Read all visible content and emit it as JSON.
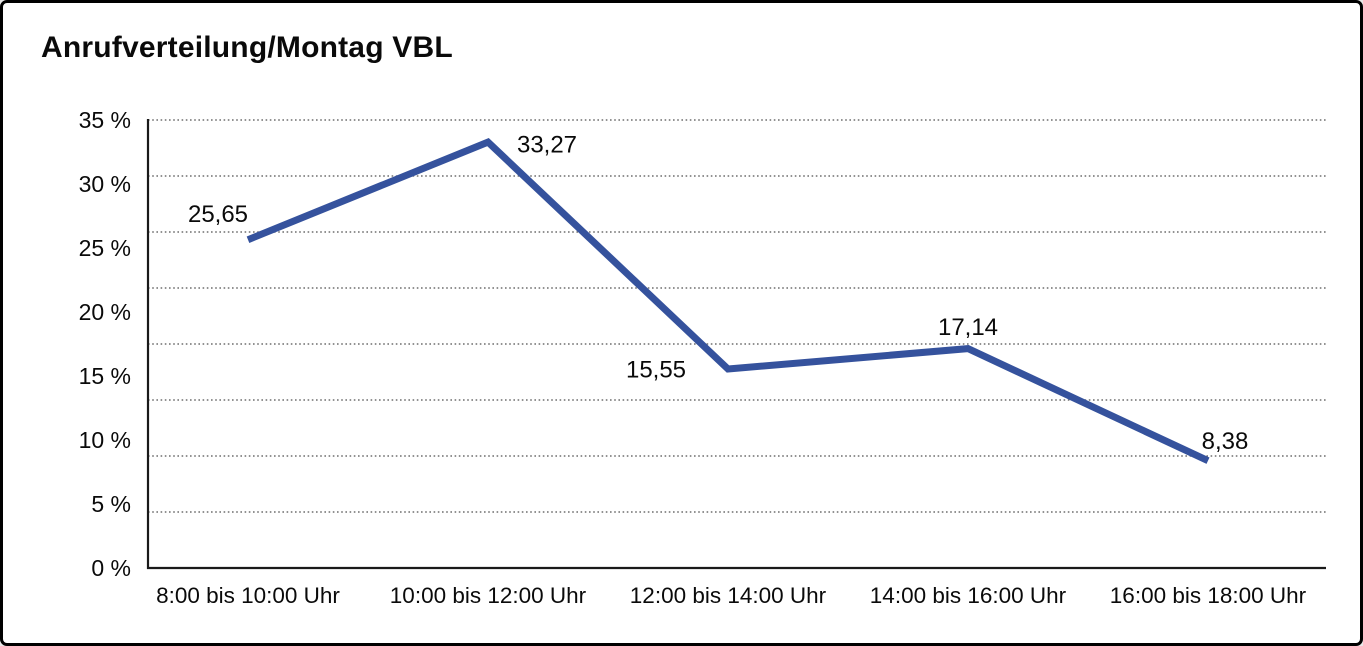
{
  "frame": {
    "background": "#ffffff",
    "border_color": "#000000"
  },
  "chart_data": {
    "type": "line",
    "title": "Anrufverteilung/Montag VBL",
    "categories": [
      "8:00 bis 10:00 Uhr",
      "10:00 bis 12:00 Uhr",
      "12:00 bis 14:00 Uhr",
      "14:00 bis 16:00 Uhr",
      "16:00 bis 18:00 Uhr"
    ],
    "values": [
      25.65,
      33.27,
      15.55,
      17.14,
      8.38
    ],
    "point_labels": [
      "25,65",
      "33,27",
      "15,55",
      "17,14",
      "8,38"
    ],
    "xlabel": "",
    "ylabel": "",
    "ylim": [
      0,
      35
    ],
    "ytick_labels": [
      "35 %",
      "30 %",
      "25 %",
      "20 %",
      "15 %",
      "10 %",
      "5 %",
      "0 %"
    ],
    "grid": "horizontal-dotted",
    "grid_line_count": 8,
    "legend": "none",
    "colors": {
      "line": "#35529D",
      "text": "#0a0a0a",
      "grid": "#6f6f6f",
      "axis": "#1a1a1a"
    }
  }
}
